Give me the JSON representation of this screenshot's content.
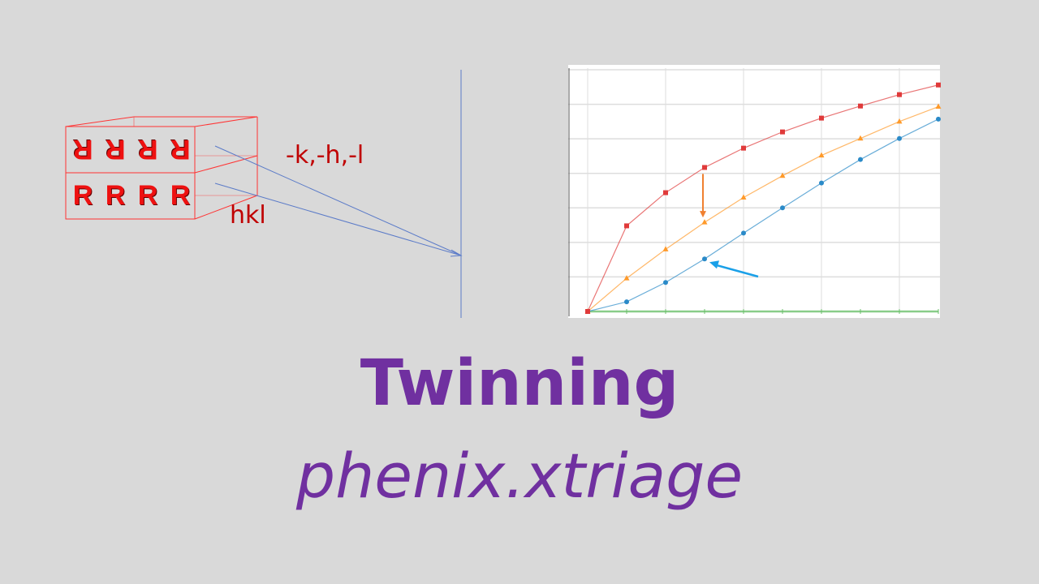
{
  "diagram": {
    "twin_domain_letters": [
      "R",
      "R",
      "R",
      "R"
    ],
    "main_domain_letters": [
      "R",
      "R",
      "R",
      "R"
    ],
    "twin_operator_label": "-k,-h,-l",
    "main_index_label": "hkl",
    "box_color": "#ff3333",
    "ray_color": "#5b7bc8"
  },
  "chart_data": {
    "type": "line",
    "x": [
      0,
      1,
      2,
      3,
      4,
      5,
      6,
      7,
      8,
      9
    ],
    "series": [
      {
        "color": "#e03a3a",
        "marker": "square",
        "values": [
          0,
          2.48,
          3.44,
          4.17,
          4.73,
          5.2,
          5.6,
          5.95,
          6.28,
          6.56
        ]
      },
      {
        "color": "#ff9a2a",
        "marker": "triangle",
        "values": [
          0,
          0.96,
          1.8,
          2.58,
          3.3,
          3.93,
          4.52,
          5.01,
          5.5,
          5.93
        ]
      },
      {
        "color": "#2a8ac8",
        "marker": "circle",
        "values": [
          0,
          0.28,
          0.84,
          1.52,
          2.27,
          3.0,
          3.72,
          4.4,
          5.01,
          5.57
        ]
      },
      {
        "color": "#6cc06c",
        "marker": "none",
        "values": [
          0,
          0,
          0,
          0,
          0,
          0,
          0,
          0,
          0,
          0
        ]
      }
    ],
    "ylim": [
      0,
      7
    ],
    "grid": true,
    "annotations": [
      {
        "type": "arrow",
        "color": "#f08030",
        "from_series": 0,
        "to_series": 1,
        "at_x": 3
      },
      {
        "type": "arrow",
        "color": "#1aa0e8",
        "points_to_series": 2,
        "at_x": 3
      }
    ]
  },
  "title": {
    "main": "Twinning",
    "subtitle": "phenix.xtriage",
    "color": "#7030a0"
  }
}
